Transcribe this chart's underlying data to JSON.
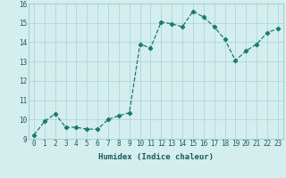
{
  "x": [
    0,
    1,
    2,
    3,
    4,
    5,
    6,
    7,
    8,
    9,
    10,
    11,
    12,
    13,
    14,
    15,
    16,
    17,
    18,
    19,
    20,
    21,
    22,
    23
  ],
  "y": [
    9.2,
    9.9,
    10.3,
    9.6,
    9.6,
    9.5,
    9.5,
    10.0,
    10.2,
    10.35,
    13.9,
    13.7,
    15.05,
    14.95,
    14.8,
    15.6,
    15.3,
    14.8,
    14.15,
    13.05,
    13.55,
    13.9,
    14.5,
    14.7
  ],
  "line_color": "#1a7a6e",
  "marker": "D",
  "markersize": 2.2,
  "linewidth": 0.9,
  "xlabel": "Humidex (Indice chaleur)",
  "xlim": [
    -0.5,
    23.5
  ],
  "ylim": [
    9.0,
    16.0
  ],
  "yticks": [
    9,
    10,
    11,
    12,
    13,
    14,
    15,
    16
  ],
  "xticks": [
    0,
    1,
    2,
    3,
    4,
    5,
    6,
    7,
    8,
    9,
    10,
    11,
    12,
    13,
    14,
    15,
    16,
    17,
    18,
    19,
    20,
    21,
    22,
    23
  ],
  "bg_color": "#d4eeee",
  "grid_color": "#aad0d0",
  "tick_fontsize": 5.5,
  "label_fontsize": 6.5,
  "text_color": "#1a5a5a"
}
